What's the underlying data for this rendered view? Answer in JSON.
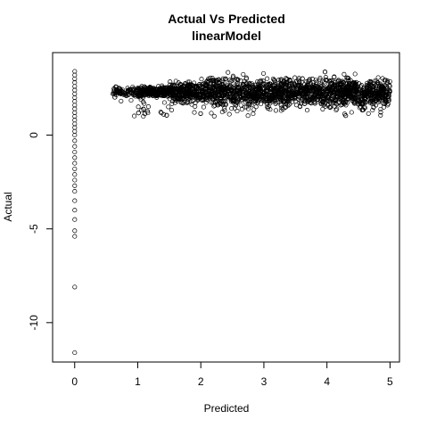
{
  "chart_data": {
    "type": "scatter",
    "title": "Actual Vs Predicted",
    "subtitle": "linearModel",
    "xlabel": "Predicted",
    "ylabel": "Actual",
    "xlim": [
      -0.35,
      5.15
    ],
    "ylim": [
      -12.1,
      4.4
    ],
    "xticks": [
      0,
      1,
      2,
      3,
      4,
      5
    ],
    "yticks": [
      -10,
      -5,
      0
    ],
    "grid": false,
    "legend": "none",
    "marker": "open-circle",
    "point_color": "#000000",
    "series": [
      {
        "points_at_zero_prediction": [
          [
            0,
            3.4
          ],
          [
            0,
            3.2
          ],
          [
            0,
            3.0
          ],
          [
            0,
            2.8
          ],
          [
            0,
            2.6
          ],
          [
            0,
            2.4
          ],
          [
            0,
            2.2
          ],
          [
            0,
            2.0
          ],
          [
            0,
            1.8
          ],
          [
            0,
            1.6
          ],
          [
            0,
            1.4
          ],
          [
            0,
            1.2
          ],
          [
            0,
            1.0
          ],
          [
            0,
            0.8
          ],
          [
            0,
            0.6
          ],
          [
            0,
            0.4
          ],
          [
            0,
            0.2
          ],
          [
            0,
            0.0
          ],
          [
            0,
            -0.3
          ],
          [
            0,
            -0.6
          ],
          [
            0,
            -0.9
          ],
          [
            0,
            -1.2
          ],
          [
            0,
            -1.5
          ],
          [
            0,
            -1.8
          ],
          [
            0,
            -2.1
          ],
          [
            0,
            -2.4
          ],
          [
            0,
            -2.7
          ],
          [
            0,
            -3.0
          ],
          [
            0,
            -3.5
          ],
          [
            0,
            -4.0
          ],
          [
            0,
            -4.5
          ],
          [
            0,
            -5.1
          ],
          [
            0,
            -5.4
          ],
          [
            0,
            -8.1
          ],
          [
            0,
            -11.6
          ]
        ],
        "cloud": {
          "x_range": [
            0.6,
            5.0
          ],
          "y_center": 2.3,
          "y_spread": [
            0.9,
            3.9
          ],
          "n_points": 2600
        }
      }
    ]
  }
}
